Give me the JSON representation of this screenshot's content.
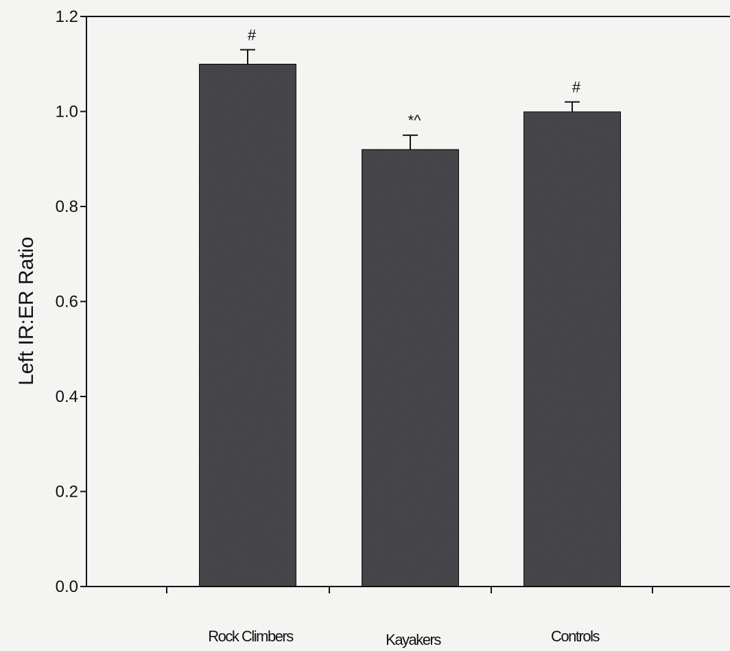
{
  "chart_data": {
    "type": "bar",
    "title": "",
    "xlabel": "",
    "ylabel": "Left IR:ER Ratio",
    "ylim": [
      0.0,
      1.2
    ],
    "yticks": [
      "0.0",
      "0.2",
      "0.4",
      "0.6",
      "0.8",
      "1.0",
      "1.2"
    ],
    "categories": [
      "Rock Climbers",
      "Kayakers",
      "Controls"
    ],
    "values": [
      1.1,
      0.92,
      1.0
    ],
    "error": [
      0.03,
      0.03,
      0.02
    ],
    "annotations": [
      "#",
      "*^",
      "#"
    ],
    "grid": false,
    "legend": "none",
    "bar_color": "#4a4a4f"
  }
}
